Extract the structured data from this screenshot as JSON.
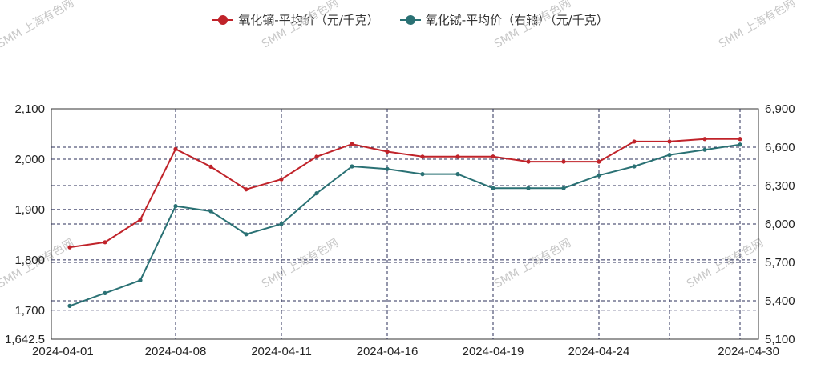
{
  "legend": {
    "series1_label": "氧化镝-平均价（元/千克）",
    "series2_label": "氧化铽-平均价（右轴）（元/千克）"
  },
  "watermark": "SMM 上海有色网",
  "chart_data": {
    "type": "line",
    "x": [
      "2024-04-01",
      "2024-04-02",
      "2024-04-03",
      "2024-04-08",
      "2024-04-09",
      "2024-04-10",
      "2024-04-11",
      "2024-04-12",
      "2024-04-15",
      "2024-04-16",
      "2024-04-17",
      "2024-04-18",
      "2024-04-19",
      "2024-04-22",
      "2024-04-23",
      "2024-04-24",
      "2024-04-25",
      "2024-04-26",
      "2024-04-29",
      "2024-04-30"
    ],
    "x_tick_labels": [
      "2024-04-01",
      "2024-04-08",
      "2024-04-11",
      "2024-04-16",
      "2024-04-19",
      "2024-04-24",
      "2024-04-30"
    ],
    "left_axis": {
      "ylim": [
        1642.5,
        2100
      ],
      "ticks": [
        "1,642.5",
        "1,700",
        "1,800",
        "1,900",
        "2,000",
        "2,100"
      ],
      "tick_values": [
        1642.5,
        1700,
        1800,
        1900,
        2000,
        2100
      ]
    },
    "right_axis": {
      "ylim": [
        5100,
        6900
      ],
      "ticks": [
        "5,100",
        "5,400",
        "5,700",
        "6,000",
        "6,300",
        "6,600",
        "6,900"
      ],
      "tick_values": [
        5100,
        5400,
        5700,
        6000,
        6300,
        6600,
        6900
      ]
    },
    "series": [
      {
        "name": "氧化镝-平均价（元/千克）",
        "axis": "left",
        "color": "#c0232a",
        "values": [
          1825,
          1835,
          1880,
          2020,
          1985,
          1940,
          1960,
          2005,
          2030,
          2015,
          2005,
          2005,
          2005,
          1995,
          1995,
          1995,
          2035,
          2035,
          2040,
          2040
        ]
      },
      {
        "name": "氧化铽-平均价（右轴）（元/千克）",
        "axis": "right",
        "color": "#2a7174",
        "values": [
          5360,
          5460,
          5560,
          6140,
          6100,
          5920,
          6000,
          6240,
          6450,
          6430,
          6390,
          6390,
          6280,
          6280,
          6280,
          6380,
          6450,
          6540,
          6580,
          6620
        ]
      }
    ],
    "grid": true
  }
}
